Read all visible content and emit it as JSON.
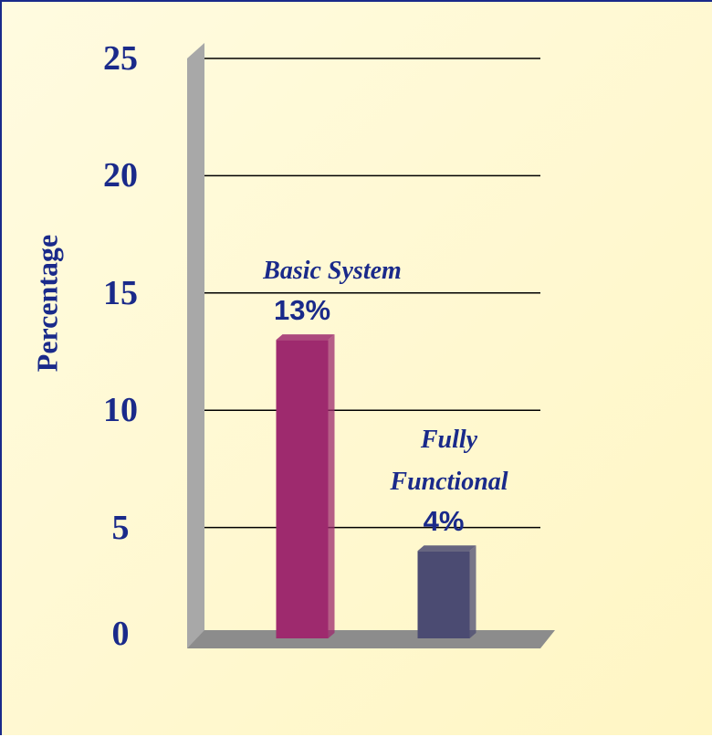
{
  "chart_data": {
    "type": "bar",
    "y_label": "Percentage",
    "categories": [
      "Basic System",
      "Fully Functional"
    ],
    "values": [
      13,
      4
    ],
    "value_labels": [
      "13%",
      "4%"
    ],
    "colors": [
      "#9e2a6e",
      "#4b4b72"
    ],
    "ylim": [
      0,
      25
    ],
    "yticks": [
      0,
      5,
      10,
      15,
      20,
      25
    ],
    "grid": true
  }
}
